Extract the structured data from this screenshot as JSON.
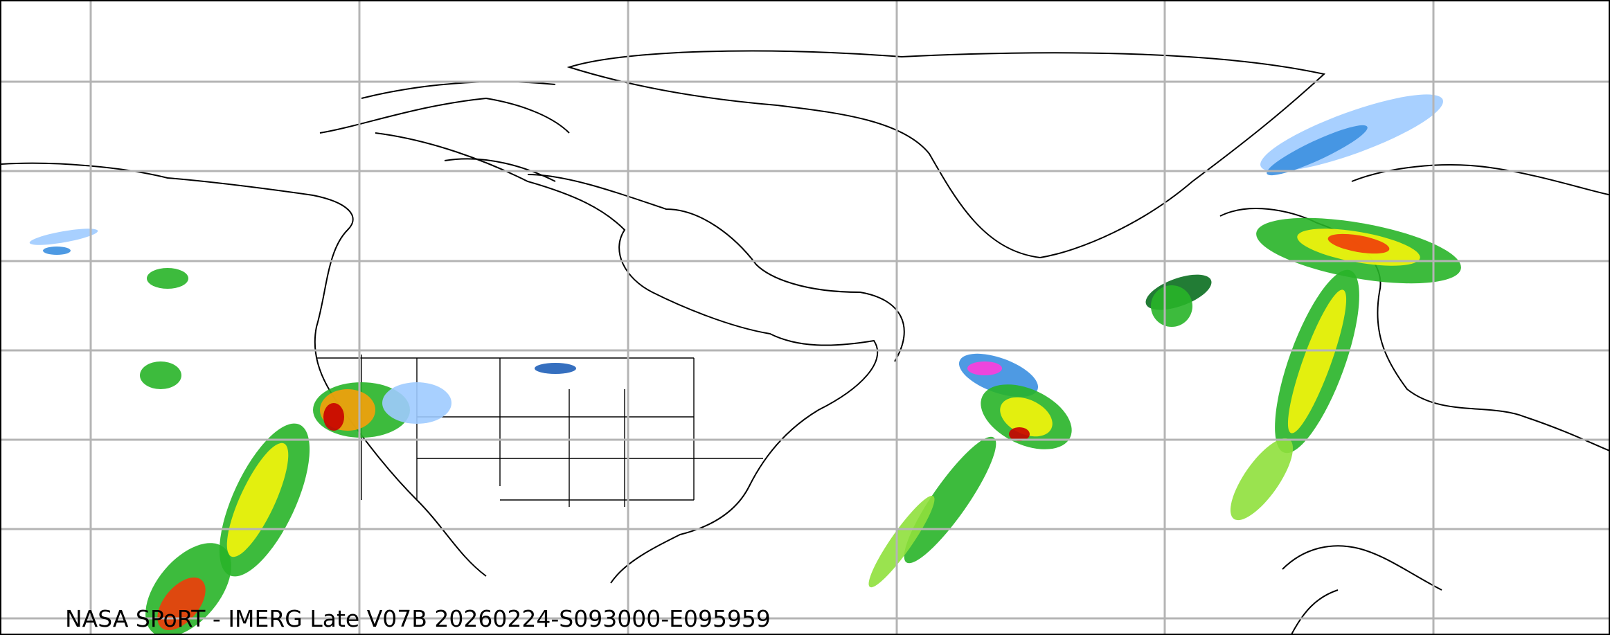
{
  "map": {
    "caption": "NASA SPoRT - IMERG Late V07B 20260224-S093000-E095959",
    "projection": "equirectangular",
    "gridlines": true,
    "precip_colors": [
      "#9ecbff",
      "#3b8fe0",
      "#1f5fb8",
      "#0a6e1f",
      "#28b428",
      "#8fe03c",
      "#f5f50a",
      "#f5a00a",
      "#f03c0a",
      "#c80000",
      "#ff3cdc"
    ],
    "coastline_color": "#000000",
    "grid_color": "#b4b4b4"
  }
}
